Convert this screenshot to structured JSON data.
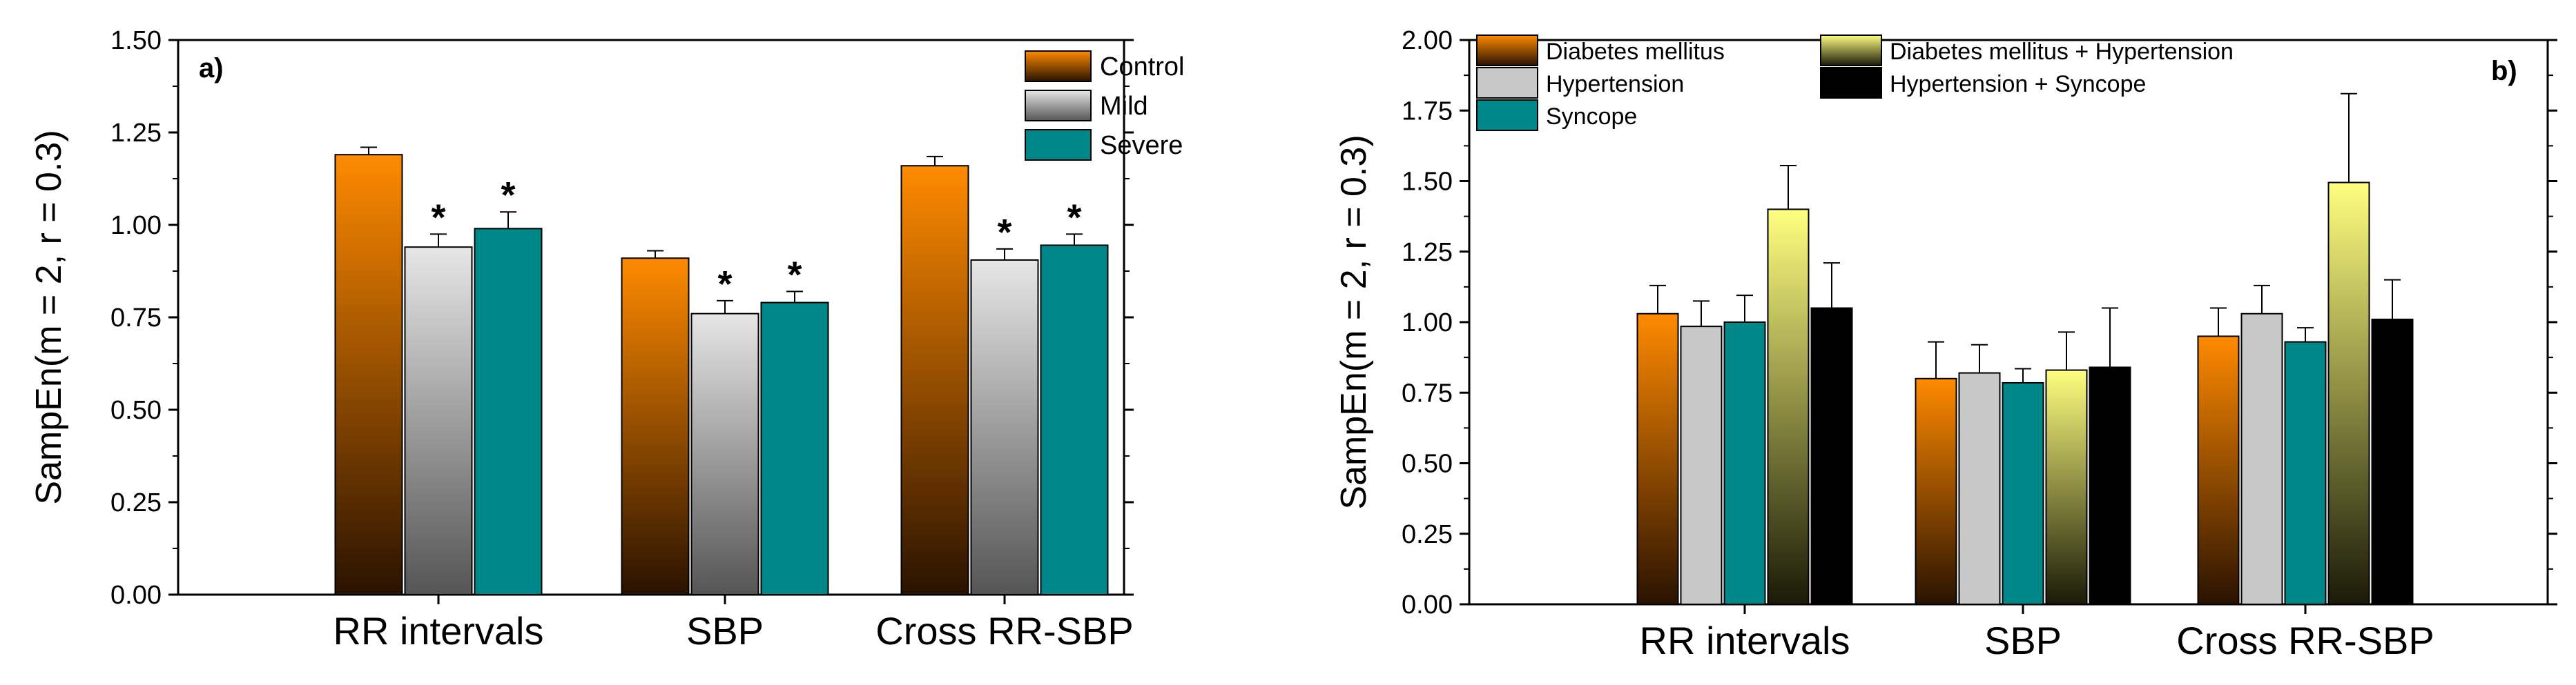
{
  "gradients": {
    "Control": {
      "top": "#ff8a00",
      "bottom": "#2a1200"
    },
    "Mild": {
      "top": "#e6e6e6",
      "bottom": "#555555"
    },
    "Severe": {
      "top": "#00878a",
      "bottom": "#00878a"
    },
    "Diabetes mellitus": {
      "top": "#ff8a00",
      "bottom": "#2a1200"
    },
    "Hypertension": {
      "top": "#c8c8c8",
      "bottom": "#c8c8c8"
    },
    "Syncope": {
      "top": "#00878a",
      "bottom": "#00878a"
    },
    "Diabetes mellitus + Hypertension": {
      "top": "#ffff80",
      "bottom": "#1a1a08"
    },
    "Hypertension + Syncope": {
      "top": "#000000",
      "bottom": "#000000"
    }
  },
  "chart_data": [
    {
      "type": "bar",
      "panel_label": "a)",
      "ylabel": "SampEn(m = 2, r = 0.3)",
      "ylim": [
        0,
        1.5
      ],
      "yticks": [
        "0.00",
        "0.25",
        "0.50",
        "0.75",
        "1.00",
        "1.25",
        "1.50"
      ],
      "categories": [
        "RR intervals",
        "SBP",
        "Cross RR-SBP"
      ],
      "legend_position": "top-right",
      "series": [
        {
          "name": "Control",
          "values": [
            1.19,
            0.91,
            1.16
          ],
          "errors": [
            0.02,
            0.02,
            0.025
          ],
          "stars": [
            false,
            false,
            false
          ]
        },
        {
          "name": "Mild",
          "values": [
            0.94,
            0.76,
            0.905
          ],
          "errors": [
            0.035,
            0.035,
            0.03
          ],
          "stars": [
            true,
            true,
            true
          ]
        },
        {
          "name": "Severe",
          "values": [
            0.99,
            0.79,
            0.945
          ],
          "errors": [
            0.045,
            0.03,
            0.03
          ],
          "stars": [
            true,
            true,
            true
          ]
        }
      ],
      "star_symbol": "*"
    },
    {
      "type": "bar",
      "panel_label": "b)",
      "ylabel": "SampEn(m = 2, r = 0.3)",
      "ylim": [
        0,
        2.0
      ],
      "yticks": [
        "0.00",
        "0.25",
        "0.50",
        "0.75",
        "1.00",
        "1.25",
        "1.50",
        "1.75",
        "2.00"
      ],
      "categories": [
        "RR intervals",
        "SBP",
        "Cross RR-SBP"
      ],
      "legend_position": "top",
      "series": [
        {
          "name": "Diabetes mellitus",
          "values": [
            1.03,
            0.8,
            0.95
          ],
          "errors": [
            0.1,
            0.13,
            0.1
          ]
        },
        {
          "name": "Hypertension",
          "values": [
            0.985,
            0.82,
            1.03
          ],
          "errors": [
            0.09,
            0.1,
            0.1
          ]
        },
        {
          "name": "Syncope",
          "values": [
            1.0,
            0.785,
            0.93
          ],
          "errors": [
            0.095,
            0.05,
            0.05
          ]
        },
        {
          "name": "Diabetes mellitus + Hypertension",
          "values": [
            1.4,
            0.83,
            1.495
          ],
          "errors": [
            0.155,
            0.135,
            0.315
          ]
        },
        {
          "name": "Hypertension + Syncope",
          "values": [
            1.05,
            0.84,
            1.01
          ],
          "errors": [
            0.16,
            0.21,
            0.14
          ]
        }
      ]
    }
  ]
}
